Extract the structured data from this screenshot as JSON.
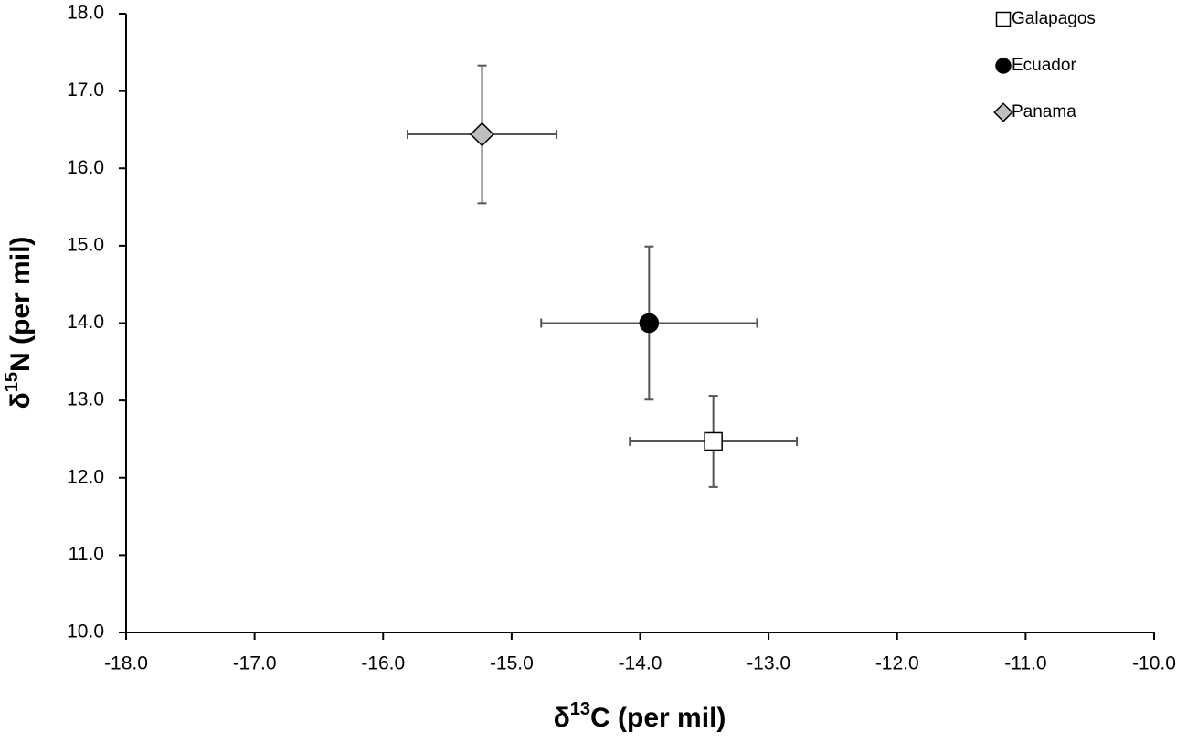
{
  "chart_data": {
    "type": "scatter",
    "xlabel": [
      "δ",
      "13",
      "C (per mil)"
    ],
    "ylabel": [
      "δ",
      "15",
      "N (per mil)"
    ],
    "xlim": [
      -18,
      -10
    ],
    "ylim": [
      10,
      18
    ],
    "xticks": [
      {
        "value": -18,
        "label": "-18.0"
      },
      {
        "value": -17,
        "label": "-17.0"
      },
      {
        "value": -16,
        "label": "-16.0"
      },
      {
        "value": -15,
        "label": "-15.0"
      },
      {
        "value": -14,
        "label": "-14.0"
      },
      {
        "value": -13,
        "label": "-13.0"
      },
      {
        "value": -12,
        "label": "-12.0"
      },
      {
        "value": -11,
        "label": "-11.0"
      },
      {
        "value": -10,
        "label": "-10.0"
      }
    ],
    "yticks": [
      {
        "value": 10,
        "label": "10.0"
      },
      {
        "value": 11,
        "label": "11.0"
      },
      {
        "value": 12,
        "label": "12.0"
      },
      {
        "value": 13,
        "label": "13.0"
      },
      {
        "value": 14,
        "label": "14.0"
      },
      {
        "value": 15,
        "label": "15.0"
      },
      {
        "value": 16,
        "label": "16.0"
      },
      {
        "value": 17,
        "label": "17.0"
      },
      {
        "value": 18,
        "label": "18.0"
      }
    ],
    "legend": "upper right",
    "grid": false,
    "series": [
      {
        "name": "Galapagos",
        "color": "#ffffff",
        "marker": "square",
        "x": [
          -13.43
        ],
        "y": [
          12.47
        ],
        "xerr": [
          0.65
        ],
        "yerr": [
          0.59
        ]
      },
      {
        "name": "Ecuador",
        "color": "#000000",
        "marker": "circle",
        "x": [
          -13.93
        ],
        "y": [
          14.0
        ],
        "xerr": [
          0.84
        ],
        "yerr": [
          0.99
        ]
      },
      {
        "name": "Panama",
        "color": "#bfbfbf",
        "marker": "diamond",
        "x": [
          -15.23
        ],
        "y": [
          16.44
        ],
        "xerr": [
          0.58
        ],
        "yerr": [
          0.89
        ]
      }
    ]
  }
}
